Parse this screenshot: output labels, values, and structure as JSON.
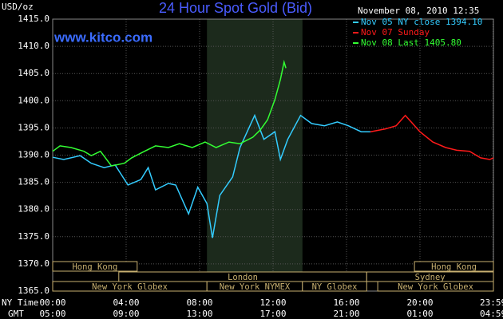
{
  "chart_data": {
    "type": "line",
    "title": "24 Hour Spot Gold (Bid)",
    "y_label": "USD/oz",
    "source": "www.kitco.com",
    "timestamp": "November 08, 2010 12:35",
    "x_label": "NY Time",
    "x2_label": "GMT",
    "xlim": [
      0,
      24
    ],
    "ylim": [
      1365,
      1415
    ],
    "grid": true,
    "background": "#000000",
    "highlight": [
      8.4,
      13.6
    ],
    "yticks": [
      {
        "value": 1365,
        "label": "1365.0"
      },
      {
        "value": 1370,
        "label": "1370.0"
      },
      {
        "value": 1375,
        "label": "1375.0"
      },
      {
        "value": 1380,
        "label": "1380.0"
      },
      {
        "value": 1385,
        "label": "1385.0"
      },
      {
        "value": 1390,
        "label": "1390.0"
      },
      {
        "value": 1395,
        "label": "1395.0"
      },
      {
        "value": 1400,
        "label": "1400.0"
      },
      {
        "value": 1405,
        "label": "1405.0"
      },
      {
        "value": 1410,
        "label": "1410.0"
      },
      {
        "value": 1415,
        "label": "1415.0"
      }
    ],
    "xticks": [
      {
        "value": 0,
        "label": "00:00"
      },
      {
        "value": 4,
        "label": "04:00"
      },
      {
        "value": 8,
        "label": "08:00"
      },
      {
        "value": 12,
        "label": "12:00"
      },
      {
        "value": 16,
        "label": "16:00"
      },
      {
        "value": 20,
        "label": "20:00"
      },
      {
        "value": 23.98,
        "label": "23:59"
      }
    ],
    "x2ticks": [
      {
        "value": 0,
        "label": "05:00"
      },
      {
        "value": 4,
        "label": "09:00"
      },
      {
        "value": 8,
        "label": "13:00"
      },
      {
        "value": 12,
        "label": "17:00"
      },
      {
        "value": 16,
        "label": "21:00"
      },
      {
        "value": 20,
        "label": "01:00"
      },
      {
        "value": 23.98,
        "label": "04:59"
      }
    ],
    "session_rows": [
      [
        {
          "label": "Hong Kong",
          "start": 0,
          "end": 4.6
        },
        {
          "label": "Hong Kong",
          "start": 19.7,
          "end": 24
        }
      ],
      [
        {
          "label": "London",
          "start": 3.6,
          "end": 17.1
        },
        {
          "label": "Sydney",
          "start": 17.1,
          "end": 24
        }
      ],
      [
        {
          "label": "New York Globex",
          "start": 0,
          "end": 8.4
        },
        {
          "label": "New York NYMEX",
          "start": 8.4,
          "end": 13.6
        },
        {
          "label": "NY Globex",
          "start": 13.6,
          "end": 17.1
        },
        {
          "label": "New York Globex",
          "start": 17.7,
          "end": 24
        }
      ]
    ],
    "series": [
      {
        "name": "Nov 05 NY close 1394.10",
        "color": "#33ccff",
        "x": [
          0,
          0.6,
          1.5,
          2.1,
          2.8,
          3.4,
          4.1,
          4.8,
          5.2,
          5.6,
          6.3,
          6.7,
          7.4,
          7.9,
          8.4,
          8.7,
          9.1,
          9.8,
          10.2,
          10.7,
          11.0,
          11.5,
          12.1,
          12.4,
          12.8,
          13.5,
          14.1,
          14.8,
          15.5,
          16.1,
          16.8,
          17.3
        ],
        "values": [
          1389.6,
          1389.2,
          1389.9,
          1388.5,
          1387.7,
          1388.2,
          1384.5,
          1385.5,
          1387.7,
          1383.6,
          1384.8,
          1384.5,
          1379.2,
          1384.1,
          1381.1,
          1374.8,
          1382.6,
          1386.0,
          1391.4,
          1395.1,
          1397.3,
          1392.9,
          1394.3,
          1389.2,
          1392.9,
          1397.3,
          1395.8,
          1395.4,
          1396.1,
          1395.4,
          1394.3,
          1394.3
        ]
      },
      {
        "name": "Nov 07 Sunday",
        "color": "#ff1a1a",
        "x": [
          17.3,
          18.1,
          18.7,
          19.2,
          19.6,
          20.0,
          20.7,
          21.4,
          22.0,
          22.7,
          23.3,
          23.8,
          24.0
        ],
        "values": [
          1394.3,
          1394.8,
          1395.4,
          1397.3,
          1395.8,
          1394.3,
          1392.4,
          1391.4,
          1390.9,
          1390.7,
          1389.5,
          1389.2,
          1389.5
        ]
      },
      {
        "name": "Nov 08 Last 1405.80",
        "color": "#33ff33",
        "x": [
          0,
          0.4,
          1.0,
          1.7,
          2.1,
          2.6,
          3.2,
          3.9,
          4.3,
          5.0,
          5.6,
          6.3,
          6.9,
          7.6,
          8.3,
          8.9,
          9.6,
          10.2,
          10.9,
          11.3,
          11.7,
          12.1,
          12.4,
          12.6,
          12.7
        ],
        "values": [
          1390.7,
          1391.7,
          1391.4,
          1390.7,
          1389.9,
          1390.7,
          1388.0,
          1388.5,
          1389.5,
          1390.7,
          1391.7,
          1391.4,
          1392.1,
          1391.4,
          1392.4,
          1391.4,
          1392.4,
          1392.1,
          1393.3,
          1394.6,
          1396.5,
          1400.2,
          1403.9,
          1407.1,
          1406.0
        ]
      }
    ]
  }
}
